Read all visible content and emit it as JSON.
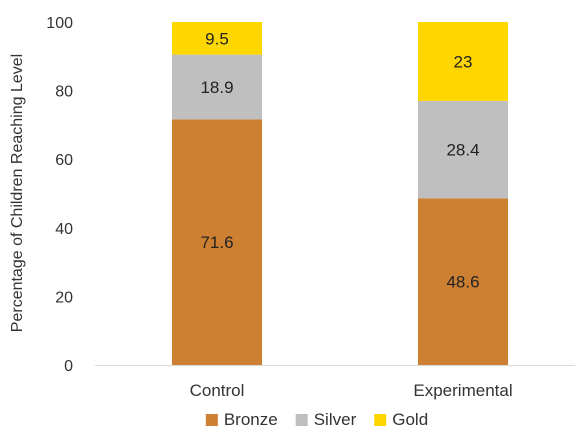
{
  "chart_data": {
    "type": "bar",
    "stacked": true,
    "categories": [
      "Control",
      "Experimental"
    ],
    "series": [
      {
        "name": "Bronze",
        "values": [
          71.6,
          48.6
        ],
        "color": "#CD7F32"
      },
      {
        "name": "Silver",
        "values": [
          18.9,
          28.4
        ],
        "color": "#BFBFBF"
      },
      {
        "name": "Gold",
        "values": [
          9.5,
          23
        ],
        "color": "#FFD700"
      }
    ],
    "title": "",
    "xlabel": "",
    "ylabel": "Percentage of Children Reaching Level",
    "ylim": [
      0,
      100
    ],
    "yticks": [
      0,
      20,
      40,
      60,
      80,
      100
    ],
    "grid": false,
    "legend": "bottom",
    "data_labels": true
  }
}
